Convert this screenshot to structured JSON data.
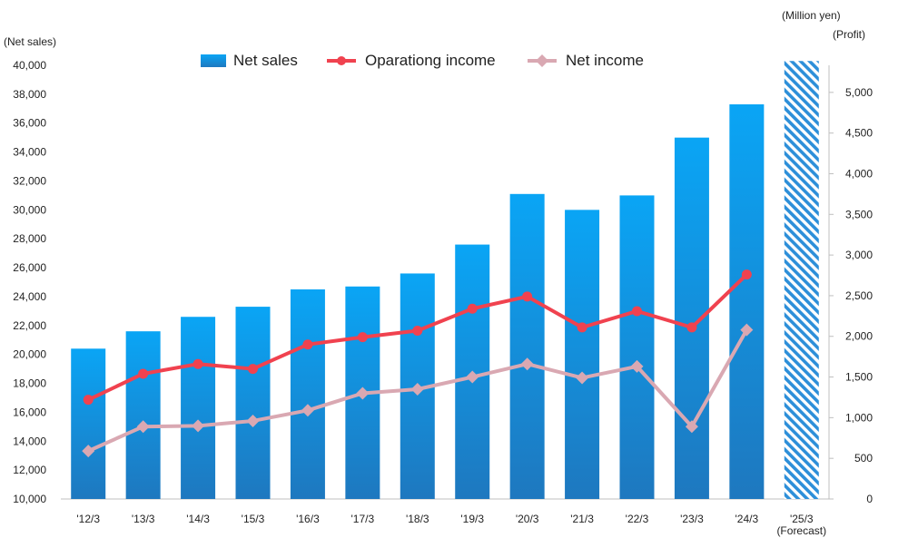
{
  "chart_data": {
    "type": "bar",
    "units_label": "(Million yen)",
    "left_axis_label": "(Net sales)",
    "right_axis_label": "(Profit)",
    "categories": [
      "'12/3",
      "'13/3",
      "'14/3",
      "'15/3",
      "'16/3",
      "'17/3",
      "'18/3",
      "'19/3",
      "'20/3",
      "'21/3",
      "'22/3",
      "'23/3",
      "'24/3",
      "'25/3"
    ],
    "forecast_label": "(Forecast)",
    "left_axis": {
      "min": 10000,
      "max": 40000,
      "ticks": [
        "10,000",
        "12,000",
        "14,000",
        "16,000",
        "18,000",
        "20,000",
        "22,000",
        "24,000",
        "26,000",
        "28,000",
        "30,000",
        "32,000",
        "34,000",
        "36,000",
        "38,000",
        "40,000"
      ]
    },
    "right_axis": {
      "min": 0,
      "max": 5333,
      "ticks": [
        "0",
        "500",
        "1,000",
        "1,500",
        "2,000",
        "2,500",
        "3,000",
        "3,500",
        "4,000",
        "4,500",
        "5,000"
      ]
    },
    "series": [
      {
        "name": "Net sales",
        "kind": "bar",
        "axis": "left",
        "color": "#1a9be8",
        "values": [
          20400,
          21600,
          22600,
          23300,
          24500,
          24700,
          25600,
          27600,
          31100,
          30000,
          31000,
          35000,
          37300,
          40300
        ]
      },
      {
        "name": "Oparationg income",
        "kind": "line",
        "axis": "right",
        "color": "#f0424f",
        "marker": "circle",
        "values": [
          1220,
          1540,
          1660,
          1600,
          1900,
          1990,
          2070,
          2340,
          2490,
          2110,
          2310,
          2110,
          2760,
          null
        ]
      },
      {
        "name": "Net income",
        "kind": "line",
        "axis": "right",
        "color": "#d9a8b2",
        "marker": "diamond",
        "values": [
          590,
          890,
          900,
          960,
          1090,
          1300,
          1350,
          1500,
          1660,
          1490,
          1630,
          890,
          2080,
          null
        ]
      }
    ],
    "forecast_index": 13,
    "grid": false,
    "legend_position": "top"
  }
}
